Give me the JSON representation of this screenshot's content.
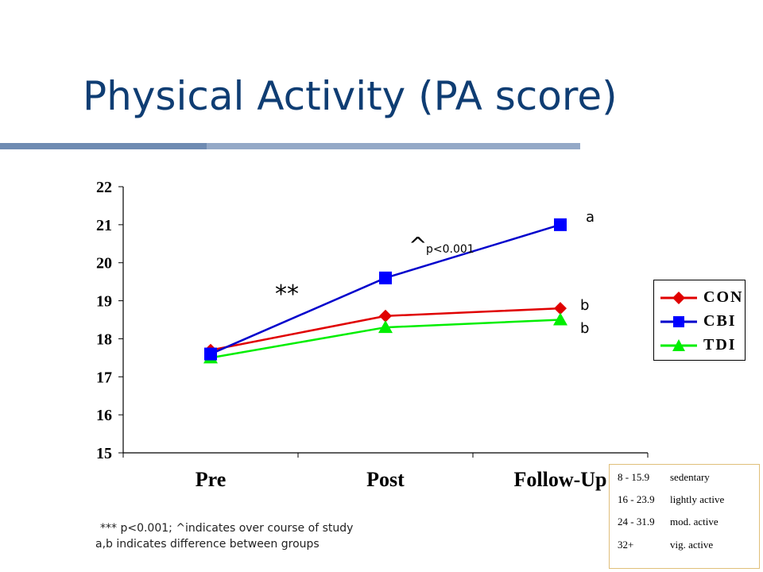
{
  "slide": {
    "title": "Physical Activity (PA score)"
  },
  "chart_data": {
    "type": "line",
    "categories": [
      "Pre",
      "Post",
      "Follow-Up"
    ],
    "ylim": [
      15,
      22
    ],
    "yticks": [
      "15",
      "16",
      "17",
      "18",
      "19",
      "20",
      "21",
      "22"
    ],
    "grid": false,
    "legend_position": "right",
    "series": [
      {
        "name": "CON",
        "values": [
          17.7,
          18.6,
          18.8
        ],
        "color": "#e00000",
        "marker": "diamond"
      },
      {
        "name": "CBI",
        "values": [
          17.6,
          19.6,
          21.0
        ],
        "color": "#0000cc",
        "marker": "square"
      },
      {
        "name": "TDI",
        "values": [
          17.5,
          18.3,
          18.5
        ],
        "color": "#00ee00",
        "marker": "triangle"
      }
    ],
    "annotations": {
      "significance": "**",
      "caret": "^",
      "caret_p": "p<0.001",
      "label_cbi": "a",
      "label_con": "b",
      "label_tdi": "b"
    }
  },
  "footnotes": {
    "line1": "*** p<0.001; ^indicates over course of study",
    "line2": "a,b  indicates difference between groups"
  },
  "scale_legend": [
    {
      "range": "8 - 15.9",
      "label": "sedentary"
    },
    {
      "range": "16 - 23.9",
      "label": "lightly active"
    },
    {
      "range": "24 - 31.9",
      "label": "mod. active"
    },
    {
      "range": "32+",
      "label": "vig. active"
    }
  ]
}
